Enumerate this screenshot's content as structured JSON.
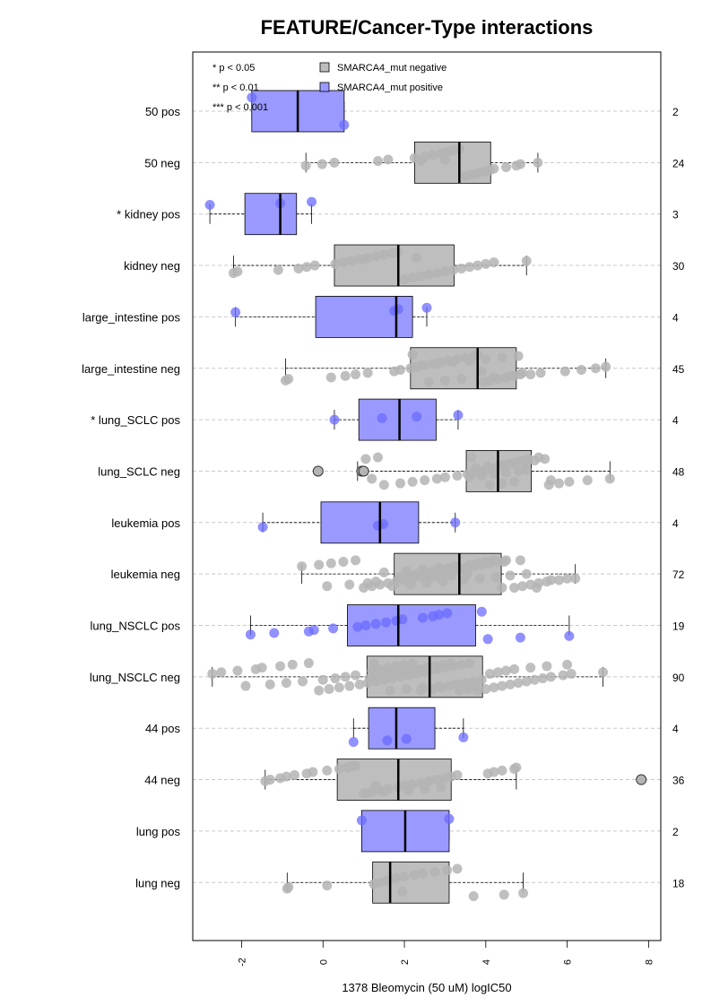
{
  "chart_data": {
    "type": "boxplot",
    "title": "FEATURE/Cancer-Type interactions",
    "xlabel": "1378 Bleomycin (50 uM) logIC50",
    "xlim": [
      -3.2,
      8.3
    ],
    "xticks": [
      -2,
      0,
      2,
      4,
      6,
      8
    ],
    "xtick_labels": [
      "-2",
      "0",
      "2",
      "4",
      "6",
      "8"
    ],
    "grid": "horizontal dashed",
    "legend_position": "top",
    "significance_legend": [
      "* p < 0.05",
      "** p < 0.01",
      "*** p < 0.001"
    ],
    "legend": [
      {
        "label": "SMARCA4_mut negative",
        "color": "#bebebe"
      },
      {
        "label": "SMARCA4_mut positive",
        "color": "#9999ff"
      }
    ],
    "colors": {
      "negative_box": "#bebebe",
      "positive_box": "#9999ff",
      "negative_point": "#b4b4b4",
      "positive_point": "#6b6bff"
    },
    "groups": [
      {
        "label": "50 pos",
        "n": "2",
        "status": "positive",
        "stats": {
          "whislo": -1.75,
          "q1": -1.75,
          "median": -0.62,
          "q3": 0.52,
          "whishi": 0.52
        },
        "points": [
          -1.75,
          0.52
        ],
        "outliers": []
      },
      {
        "label": "50 neg",
        "n": "24",
        "status": "negative",
        "stats": {
          "whislo": -0.42,
          "q1": 2.25,
          "median": 3.35,
          "q3": 4.12,
          "whishi": 5.28
        },
        "points": [
          -0.42,
          -0.02,
          0.28,
          1.35,
          1.6,
          2.25,
          2.5,
          2.7,
          2.9,
          3.05,
          3.2,
          3.35,
          3.5,
          3.65,
          3.8,
          3.95,
          4.1,
          4.2,
          4.5,
          4.75,
          4.85,
          5.28,
          2.4,
          3.0
        ]
      },
      {
        "label": "* kidney pos",
        "n": "3",
        "status": "positive",
        "stats": {
          "whislo": -2.78,
          "q1": -1.92,
          "median": -1.05,
          "q3": -0.65,
          "whishi": -0.28
        },
        "points": [
          -2.78,
          -1.05,
          -0.28
        ],
        "outliers": []
      },
      {
        "label": "kidney neg",
        "n": "30",
        "status": "negative",
        "stats": {
          "whislo": -2.2,
          "q1": 0.28,
          "median": 1.85,
          "q3": 3.22,
          "whishi": 5.0
        },
        "points": [
          -2.2,
          -2.1,
          -1.1,
          -0.6,
          -0.4,
          -0.2,
          0.3,
          0.5,
          0.7,
          0.9,
          1.1,
          1.3,
          1.5,
          1.7,
          1.85,
          2.0,
          2.2,
          2.4,
          2.6,
          2.8,
          3.0,
          3.2,
          3.4,
          3.6,
          3.8,
          4.0,
          4.2,
          5.0,
          1.0,
          2.3
        ]
      },
      {
        "label": "large_intestine pos",
        "n": "4",
        "status": "positive",
        "stats": {
          "whislo": -2.15,
          "q1": -0.18,
          "median": 1.8,
          "q3": 2.2,
          "whishi": 2.55
        },
        "points": [
          -2.15,
          1.75,
          1.85,
          2.55
        ],
        "outliers": []
      },
      {
        "label": "large_intestine neg",
        "n": "45",
        "status": "negative",
        "stats": {
          "whislo": -0.92,
          "q1": 2.15,
          "median": 3.8,
          "q3": 4.75,
          "whishi": 6.95
        },
        "points": [
          -0.92,
          -0.85,
          0.2,
          0.55,
          0.8,
          1.1,
          1.75,
          1.9,
          2.15,
          2.3,
          2.5,
          2.7,
          2.9,
          3.1,
          3.3,
          3.5,
          3.7,
          3.8,
          3.95,
          4.1,
          4.3,
          4.5,
          4.7,
          4.85,
          5.35,
          5.95,
          6.35,
          6.7,
          6.95,
          2.4,
          2.8,
          3.2,
          3.6,
          4.0,
          4.4,
          4.8,
          2.2,
          2.6,
          3.0,
          3.4,
          4.2,
          4.6,
          5.1,
          4.9,
          3.9
        ]
      },
      {
        "label": "* lung_SCLC pos",
        "n": "4",
        "status": "positive",
        "stats": {
          "whislo": 0.28,
          "q1": 0.88,
          "median": 1.88,
          "q3": 2.78,
          "whishi": 3.32
        },
        "points": [
          0.28,
          1.45,
          2.3,
          3.32
        ],
        "outliers": []
      },
      {
        "label": "lung_SCLC neg",
        "n": "48",
        "status": "negative",
        "stats": {
          "whislo": 0.85,
          "q1": 3.52,
          "median": 4.3,
          "q3": 5.12,
          "whishi": 7.05
        },
        "points": [
          1.05,
          1.35,
          1.5,
          1.9,
          2.2,
          2.5,
          2.8,
          3.0,
          3.3,
          3.55,
          3.7,
          3.85,
          4.0,
          4.15,
          4.3,
          4.45,
          4.6,
          4.75,
          4.9,
          5.05,
          5.3,
          5.55,
          5.8,
          6.05,
          6.5,
          7.05,
          3.6,
          3.9,
          4.2,
          4.5,
          4.8,
          5.0,
          3.75,
          4.05,
          4.35,
          4.65,
          4.95,
          5.2,
          5.45,
          3.65,
          4.1,
          4.4,
          4.7,
          5.6,
          1.2
        ],
        "outliers": [
          -0.12,
          0.95,
          1.0
        ]
      },
      {
        "label": "leukemia pos",
        "n": "4",
        "status": "positive",
        "stats": {
          "whislo": -1.48,
          "q1": -0.05,
          "median": 1.4,
          "q3": 2.35,
          "whishi": 3.25
        },
        "points": [
          -1.48,
          1.35,
          1.48,
          3.25
        ],
        "outliers": []
      },
      {
        "label": "leukemia neg",
        "n": "72",
        "status": "negative",
        "stats": {
          "whislo": -0.52,
          "q1": 1.75,
          "median": 3.35,
          "q3": 4.38,
          "whishi": 6.2
        },
        "points": [
          -0.52,
          -0.1,
          0.2,
          0.5,
          0.8,
          1.0,
          1.2,
          1.4,
          1.6,
          1.8,
          2.0,
          2.2,
          2.4,
          2.6,
          2.8,
          3.0,
          3.2,
          3.35,
          3.5,
          3.7,
          3.9,
          4.1,
          4.3,
          4.5,
          4.7,
          4.9,
          5.1,
          5.3,
          5.5,
          5.8,
          6.2,
          1.9,
          2.1,
          2.3,
          2.5,
          2.7,
          2.9,
          3.1,
          3.3,
          3.6,
          3.8,
          4.0,
          4.2,
          4.4,
          1.7,
          2.15,
          2.55,
          2.95,
          3.45,
          3.85,
          4.25,
          4.6,
          5.0,
          1.5,
          2.05,
          2.45,
          2.85,
          3.25,
          3.65,
          4.05,
          4.45,
          4.85,
          5.25,
          0.1,
          0.65,
          1.1,
          1.3,
          5.6,
          6.0,
          2.75,
          3.15,
          3.55
        ],
        "outliers": []
      },
      {
        "label": "lung_NSCLC pos",
        "n": "19",
        "status": "positive",
        "stats": {
          "whislo": -1.78,
          "q1": 0.6,
          "median": 1.85,
          "q3": 3.75,
          "whishi": 6.05
        },
        "points": [
          -1.78,
          -1.2,
          -0.35,
          -0.22,
          0.25,
          0.85,
          1.05,
          1.3,
          1.55,
          1.8,
          1.95,
          2.45,
          2.7,
          2.85,
          3.05,
          3.9,
          4.05,
          4.85,
          6.05
        ],
        "outliers": []
      },
      {
        "label": "lung_NSCLC neg",
        "n": "90",
        "status": "negative",
        "stats": {
          "whislo": -2.72,
          "q1": 1.08,
          "median": 2.62,
          "q3": 3.92,
          "whishi": 6.88
        },
        "points": [
          -2.72,
          -2.5,
          -2.1,
          -1.65,
          -1.5,
          -1.05,
          -0.75,
          -0.35,
          -0.1,
          0.15,
          0.4,
          0.65,
          0.9,
          1.1,
          1.3,
          1.5,
          1.7,
          1.9,
          2.1,
          2.3,
          2.5,
          2.62,
          2.8,
          3.0,
          3.2,
          3.4,
          3.6,
          3.8,
          4.0,
          4.2,
          4.4,
          4.6,
          4.8,
          5.0,
          5.2,
          5.4,
          5.6,
          5.9,
          6.1,
          6.88,
          1.2,
          1.4,
          1.6,
          1.8,
          2.0,
          2.2,
          2.4,
          2.7,
          2.9,
          3.1,
          3.3,
          3.5,
          3.7,
          3.9,
          1.15,
          1.35,
          1.55,
          1.75,
          1.95,
          2.15,
          2.35,
          2.55,
          2.75,
          2.95,
          3.15,
          3.35,
          3.55,
          3.75,
          -1.9,
          -1.3,
          -0.9,
          -0.5,
          0.0,
          0.3,
          0.55,
          0.8,
          4.1,
          4.3,
          4.5,
          4.7,
          5.1,
          5.5,
          6.0,
          1.25,
          1.65,
          2.05,
          2.45,
          2.85,
          3.25,
          3.65
        ],
        "outliers": []
      },
      {
        "label": "44 pos",
        "n": "4",
        "status": "positive",
        "stats": {
          "whislo": 0.75,
          "q1": 1.12,
          "median": 1.8,
          "q3": 2.75,
          "whishi": 3.45
        },
        "points": [
          0.75,
          1.58,
          2.05,
          3.45
        ],
        "outliers": []
      },
      {
        "label": "44 neg",
        "n": "36",
        "status": "negative",
        "stats": {
          "whislo": -1.42,
          "q1": 0.35,
          "median": 1.85,
          "q3": 3.15,
          "whishi": 4.75
        },
        "points": [
          -1.42,
          -1.3,
          -1.05,
          -0.9,
          -0.7,
          -0.4,
          -0.25,
          0.1,
          0.4,
          0.6,
          0.8,
          1.0,
          1.2,
          1.4,
          1.6,
          1.85,
          2.0,
          2.2,
          2.4,
          2.6,
          2.8,
          3.0,
          3.15,
          3.3,
          4.05,
          4.2,
          4.4,
          4.7,
          4.75,
          0.7,
          1.1,
          1.5,
          2.1,
          2.5,
          2.9,
          1.3
        ],
        "outliers": [
          7.82
        ]
      },
      {
        "label": "lung pos",
        "n": "2",
        "status": "positive",
        "stats": {
          "whislo": 0.95,
          "q1": 0.95,
          "median": 2.02,
          "q3": 3.1,
          "whishi": 3.1
        },
        "points": [
          0.95,
          3.1
        ],
        "outliers": []
      },
      {
        "label": "lung neg",
        "n": "18",
        "status": "negative",
        "stats": {
          "whislo": -0.88,
          "q1": 1.22,
          "median": 1.65,
          "q3": 3.1,
          "whishi": 4.92
        },
        "points": [
          -0.88,
          -0.85,
          0.1,
          1.25,
          1.4,
          1.55,
          1.65,
          1.8,
          2.0,
          2.25,
          2.45,
          2.75,
          3.05,
          3.3,
          3.7,
          4.45,
          4.92,
          1.95
        ]
      }
    ]
  }
}
